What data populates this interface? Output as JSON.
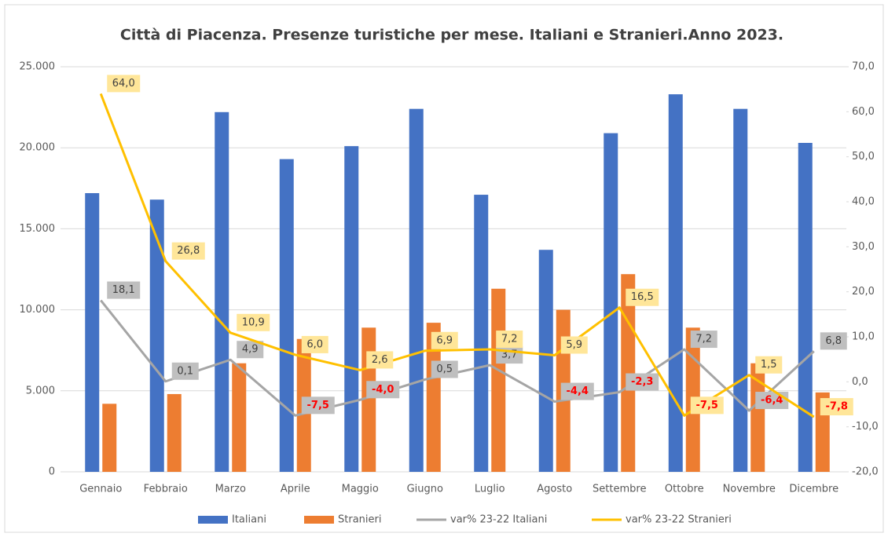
{
  "chart_data": {
    "type": "bar_line",
    "title": "Città di Piacenza. Presenze turistiche per mese. Italiani e Stranieri.Anno 2023.",
    "categories": [
      "Gennaio",
      "Febbraio",
      "Marzo",
      "Aprile",
      "Maggio",
      "Giugno",
      "Luglio",
      "Agosto",
      "Settembre",
      "Ottobre",
      "Novembre",
      "Dicembre"
    ],
    "series": [
      {
        "name": "Italiani",
        "type": "bar",
        "color": "#4472c4",
        "values": [
          17200,
          16800,
          22200,
          19300,
          20100,
          22400,
          17100,
          13700,
          20900,
          23300,
          22400,
          20300
        ]
      },
      {
        "name": "Stranieri",
        "type": "bar",
        "color": "#ed7d31",
        "values": [
          4200,
          4800,
          6700,
          8200,
          8900,
          9200,
          11300,
          10000,
          12200,
          8900,
          6700,
          4900
        ]
      },
      {
        "name": "var% 23-22 Italiani",
        "type": "line",
        "axis": "y2",
        "color": "#a5a5a5",
        "label_color": "#bfbfbf",
        "values": [
          18.1,
          0.1,
          4.9,
          -7.5,
          -4.0,
          0.5,
          3.7,
          -4.4,
          -2.3,
          7.2,
          -6.4,
          6.8
        ],
        "value_labels": [
          "18,1",
          "0,1",
          "4,9",
          "-7,5",
          "-4,0",
          "0,5",
          "3,7",
          "-4,4",
          "-2,3",
          "7,2",
          "-6,4",
          "6,8"
        ]
      },
      {
        "name": "var% 23-22 Stranieri",
        "type": "line",
        "axis": "y2",
        "color": "#ffc000",
        "label_color": "#ffe699",
        "values": [
          64.0,
          26.8,
          10.9,
          6.0,
          2.6,
          6.9,
          7.2,
          5.9,
          16.5,
          -7.5,
          1.5,
          -7.8
        ],
        "value_labels": [
          "64,0",
          "26,8",
          "10,9",
          "6,0",
          "2,6",
          "6,9",
          "7,2",
          "5,9",
          "16,5",
          "-7,5",
          "1,5",
          "-7,8"
        ]
      }
    ],
    "ylim": [
      0,
      25000
    ],
    "yticks": [
      0,
      {
        "value": 5000,
        "label": "5.000"
      },
      {
        "value": 10000,
        "label": "10.000"
      },
      {
        "value": 15000,
        "label": "15.000"
      },
      {
        "value": 20000,
        "label": "20.000"
      },
      {
        "value": 25000,
        "label": "25.000"
      }
    ],
    "y2lim": [
      -20,
      70
    ],
    "y2ticks": [
      {
        "value": -20,
        "label": "-20,0"
      },
      {
        "value": -10,
        "label": "-10,0"
      },
      {
        "value": 0,
        "label": "0,0"
      },
      {
        "value": 10,
        "label": "10,0"
      },
      {
        "value": 20,
        "label": "20,0"
      },
      {
        "value": 30,
        "label": "30,0"
      },
      {
        "value": 40,
        "label": "40,0"
      },
      {
        "value": 50,
        "label": "50,0"
      },
      {
        "value": 60,
        "label": "60,0"
      },
      {
        "value": 70,
        "label": "70,0"
      }
    ],
    "grid": true,
    "legend": "bottom"
  }
}
